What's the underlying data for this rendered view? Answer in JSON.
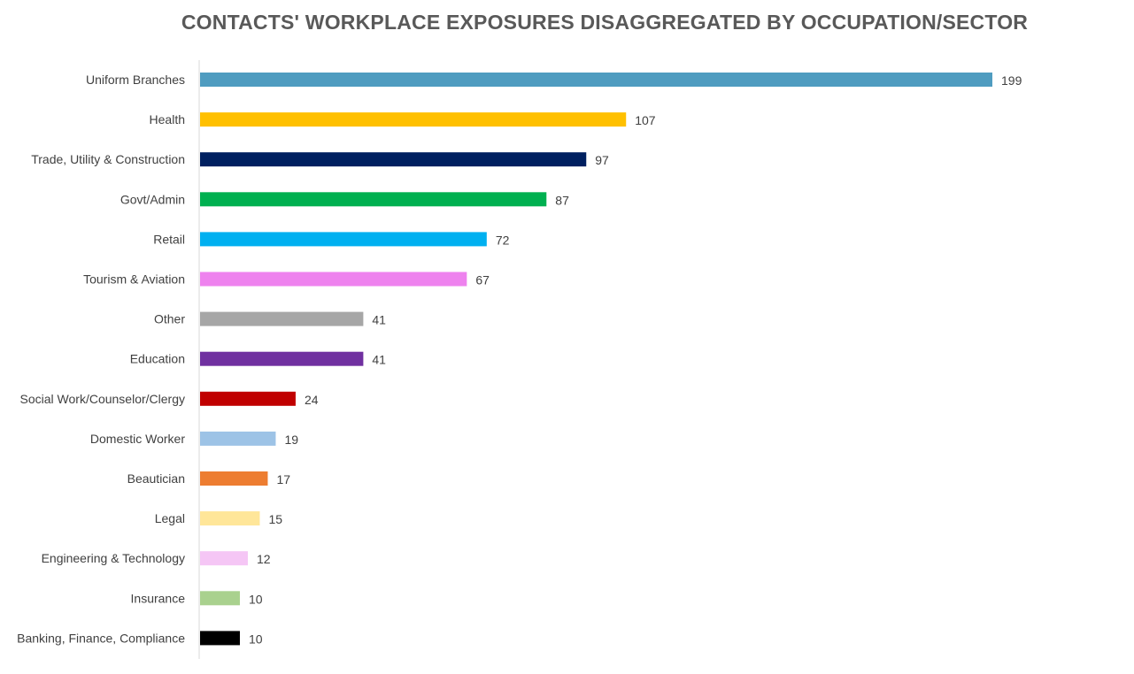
{
  "chart_data": {
    "type": "bar",
    "orientation": "horizontal",
    "title": "CONTACTS' WORKPLACE EXPOSURES DISAGGREGATED BY OCCUPATION/SECTOR",
    "xlabel": "",
    "ylabel": "",
    "grid": false,
    "legend": "none",
    "xlim": [
      0,
      199
    ],
    "categories": [
      "Uniform Branches",
      "Health",
      "Trade, Utility & Construction",
      "Govt/Admin",
      "Retail",
      "Tourism & Aviation",
      "Other",
      "Education",
      "Social Work/Counselor/Clergy",
      "Domestic Worker",
      "Beautician",
      "Legal",
      "Engineering & Technology",
      "Insurance",
      "Banking, Finance, Compliance"
    ],
    "values": [
      199,
      107,
      97,
      87,
      72,
      67,
      41,
      41,
      24,
      19,
      17,
      15,
      12,
      10,
      10
    ],
    "colors": [
      "#4F9CC0",
      "#FFC000",
      "#002060",
      "#00B050",
      "#00B0F0",
      "#EE82EE",
      "#A6A6A6",
      "#7030A0",
      "#C00000",
      "#9DC3E6",
      "#ED7D31",
      "#FFE699",
      "#F5C6F5",
      "#A9D18E",
      "#000000"
    ]
  }
}
